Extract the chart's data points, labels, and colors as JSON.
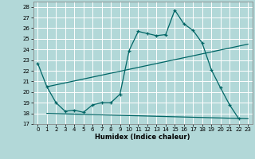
{
  "xlabel": "Humidex (Indice chaleur)",
  "bg_color": "#b2d8d8",
  "grid_color": "#ffffff",
  "line_color": "#006666",
  "xlim": [
    -0.5,
    23.5
  ],
  "ylim": [
    17,
    28.5
  ],
  "xticks": [
    0,
    1,
    2,
    3,
    4,
    5,
    6,
    7,
    8,
    9,
    10,
    11,
    12,
    13,
    14,
    15,
    16,
    17,
    18,
    19,
    20,
    21,
    22,
    23
  ],
  "yticks": [
    17,
    18,
    19,
    20,
    21,
    22,
    23,
    24,
    25,
    26,
    27,
    28
  ],
  "series_marker": {
    "x": [
      0,
      1,
      2,
      3,
      4,
      5,
      6,
      7,
      8,
      9,
      10,
      11,
      12,
      13,
      14,
      15,
      16,
      17,
      18,
      19,
      20,
      21,
      22
    ],
    "y": [
      22.7,
      20.5,
      19.0,
      18.2,
      18.3,
      18.1,
      18.8,
      19.0,
      19.0,
      19.8,
      23.9,
      25.7,
      25.5,
      25.3,
      25.4,
      27.7,
      26.4,
      25.8,
      24.6,
      22.1,
      20.4,
      18.8,
      17.5
    ]
  },
  "series_upper": {
    "x": [
      1,
      23
    ],
    "y": [
      20.5,
      24.5
    ]
  },
  "series_lower": {
    "x": [
      1,
      23
    ],
    "y": [
      18.0,
      17.5
    ]
  },
  "xlabel_fontsize": 6,
  "tick_fontsize": 5
}
